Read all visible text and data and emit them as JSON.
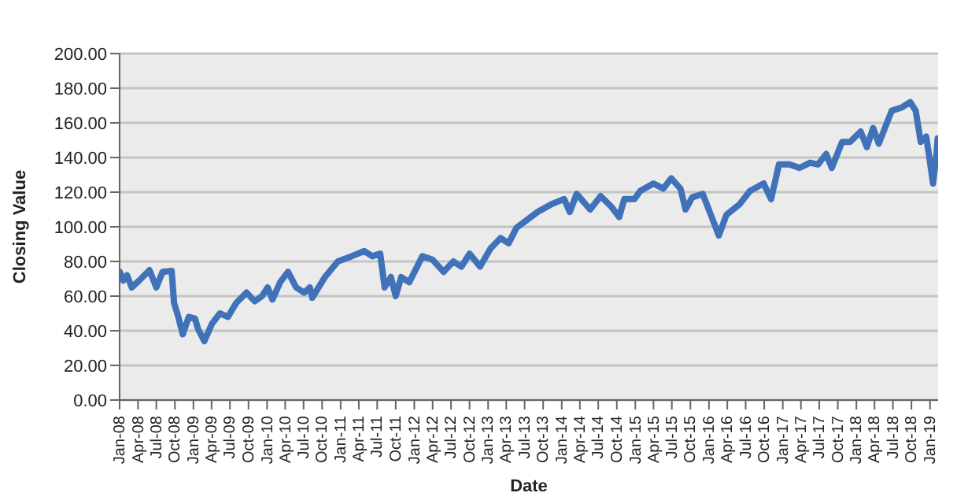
{
  "chart_data": {
    "type": "line",
    "xlabel": "Date",
    "ylabel": "Closing Value",
    "color": "#3f72b9",
    "marker": "none",
    "grid": "y",
    "legend": false,
    "x": [
      "2008-01-02",
      "2008-01-19",
      "2008-02-07",
      "2008-03-01",
      "2008-04-07",
      "2008-05-28",
      "2008-07-01",
      "2008-08-01",
      "2008-09-15",
      "2008-09-27",
      "2008-10-18",
      "2008-11-09",
      "2008-12-09",
      "2009-01-09",
      "2009-01-24",
      "2009-02-24",
      "2009-04-03",
      "2009-05-12",
      "2009-06-21",
      "2009-08-01",
      "2009-09-21",
      "2009-11-01",
      "2009-12-07",
      "2010-01-04",
      "2010-01-28",
      "2010-03-07",
      "2010-04-15",
      "2010-05-25",
      "2010-07-04",
      "2010-08-01",
      "2010-08-13",
      "2010-10-15",
      "2010-12-18",
      "2011-02-24",
      "2011-04-28",
      "2011-06-07",
      "2011-07-16",
      "2011-08-07",
      "2011-09-07",
      "2011-10-01",
      "2011-10-28",
      "2011-12-07",
      "2012-02-10",
      "2012-04-01",
      "2012-05-25",
      "2012-07-13",
      "2012-08-22",
      "2012-10-01",
      "2012-11-22",
      "2013-01-13",
      "2013-03-04",
      "2013-04-13",
      "2013-05-22",
      "2013-07-13",
      "2013-09-04",
      "2013-11-10",
      "2014-01-13",
      "2014-02-10",
      "2014-03-16",
      "2014-05-22",
      "2014-07-13",
      "2014-09-04",
      "2014-10-13",
      "2014-11-07",
      "2014-12-28",
      "2015-01-25",
      "2015-04-01",
      "2015-05-19",
      "2015-06-28",
      "2015-08-13",
      "2015-09-07",
      "2015-10-10",
      "2015-12-01",
      "2016-01-10",
      "2016-02-19",
      "2016-03-28",
      "2016-06-01",
      "2016-07-22",
      "2016-09-28",
      "2016-11-04",
      "2016-12-13",
      "2017-02-04",
      "2017-03-25",
      "2017-05-16",
      "2017-06-25",
      "2017-08-04",
      "2017-09-01",
      "2017-10-22",
      "2017-12-01",
      "2018-01-22",
      "2018-02-22",
      "2018-03-25",
      "2018-04-22",
      "2018-06-25",
      "2018-08-16",
      "2018-09-25",
      "2018-10-22",
      "2018-11-16",
      "2018-12-13",
      "2018-12-25",
      "2019-01-16",
      "2019-02-03",
      "2019-02-08"
    ],
    "values": [
      74,
      69,
      72,
      65,
      69,
      75,
      65,
      74,
      74.5,
      56,
      48,
      38,
      48,
      47,
      41,
      34,
      44,
      50,
      48,
      56,
      62,
      57,
      60,
      65,
      58,
      68,
      74,
      65,
      62,
      65,
      59,
      71,
      80,
      83,
      86,
      83,
      84.5,
      65,
      71,
      60,
      71,
      68,
      83,
      81,
      74,
      80,
      77,
      84.5,
      77,
      87.5,
      93.5,
      90.5,
      99.5,
      104,
      108.6,
      113,
      116,
      108.6,
      119,
      110,
      117.7,
      111.6,
      105.6,
      116,
      116,
      120.7,
      125,
      122,
      128,
      122,
      110,
      117,
      119,
      107,
      95,
      107,
      113,
      120.7,
      125,
      116,
      136,
      136,
      134,
      137,
      136,
      142,
      134,
      149,
      149,
      155,
      146,
      157,
      148,
      167,
      169,
      172,
      167,
      149,
      152,
      143,
      125,
      143,
      151
    ],
    "xlim": [
      "2008-01-01",
      "2019-02-10"
    ],
    "xticks": [
      {
        "value": "2008-01",
        "label": "Jan-08"
      },
      {
        "value": "2008-04",
        "label": "Apr-08"
      },
      {
        "value": "2008-07",
        "label": "Jul-08"
      },
      {
        "value": "2008-10",
        "label": "Oct-08"
      },
      {
        "value": "2009-01",
        "label": "Jan-09"
      },
      {
        "value": "2009-04",
        "label": "Apr-09"
      },
      {
        "value": "2009-07",
        "label": "Jul-09"
      },
      {
        "value": "2009-10",
        "label": "Oct-09"
      },
      {
        "value": "2010-01",
        "label": "Jan-10"
      },
      {
        "value": "2010-04",
        "label": "Apr-10"
      },
      {
        "value": "2010-07",
        "label": "Jul-10"
      },
      {
        "value": "2010-10",
        "label": "Oct-10"
      },
      {
        "value": "2011-01",
        "label": "Jan-11"
      },
      {
        "value": "2011-04",
        "label": "Apr-11"
      },
      {
        "value": "2011-07",
        "label": "Jul-11"
      },
      {
        "value": "2011-10",
        "label": "Oct-11"
      },
      {
        "value": "2012-01",
        "label": "Jan-12"
      },
      {
        "value": "2012-04",
        "label": "Apr-12"
      },
      {
        "value": "2012-07",
        "label": "Jul-12"
      },
      {
        "value": "2012-10",
        "label": "Oct-12"
      },
      {
        "value": "2013-01",
        "label": "Jan-13"
      },
      {
        "value": "2013-04",
        "label": "Apr-13"
      },
      {
        "value": "2013-07",
        "label": "Jul-13"
      },
      {
        "value": "2013-10",
        "label": "Oct-13"
      },
      {
        "value": "2014-01",
        "label": "Jan-14"
      },
      {
        "value": "2014-04",
        "label": "Apr-14"
      },
      {
        "value": "2014-07",
        "label": "Jul-14"
      },
      {
        "value": "2014-10",
        "label": "Oct-14"
      },
      {
        "value": "2015-01",
        "label": "Jan-15"
      },
      {
        "value": "2015-04",
        "label": "Apr-15"
      },
      {
        "value": "2015-07",
        "label": "Jul-15"
      },
      {
        "value": "2015-10",
        "label": "Oct-15"
      },
      {
        "value": "2016-01",
        "label": "Jan-16"
      },
      {
        "value": "2016-04",
        "label": "Apr-16"
      },
      {
        "value": "2016-07",
        "label": "Jul-16"
      },
      {
        "value": "2016-10",
        "label": "Oct-16"
      },
      {
        "value": "2017-01",
        "label": "Jan-17"
      },
      {
        "value": "2017-04",
        "label": "Apr-17"
      },
      {
        "value": "2017-07",
        "label": "Jul-17"
      },
      {
        "value": "2017-10",
        "label": "Oct-17"
      },
      {
        "value": "2018-01",
        "label": "Jan-18"
      },
      {
        "value": "2018-04",
        "label": "Apr-18"
      },
      {
        "value": "2018-07",
        "label": "Jul-18"
      },
      {
        "value": "2018-10",
        "label": "Oct-18"
      },
      {
        "value": "2019-01",
        "label": "Jan-19"
      }
    ],
    "ylim": [
      0,
      200
    ],
    "yticks": [
      {
        "value": 0,
        "label": "0.00"
      },
      {
        "value": 20,
        "label": "20.00"
      },
      {
        "value": 40,
        "label": "40.00"
      },
      {
        "value": 60,
        "label": "60.00"
      },
      {
        "value": 80,
        "label": "80.00"
      },
      {
        "value": 100,
        "label": "100.00"
      },
      {
        "value": 120,
        "label": "120.00"
      },
      {
        "value": 140,
        "label": "140.00"
      },
      {
        "value": 160,
        "label": "160.00"
      },
      {
        "value": 180,
        "label": "180.00"
      },
      {
        "value": 200,
        "label": "200.00"
      }
    ]
  }
}
